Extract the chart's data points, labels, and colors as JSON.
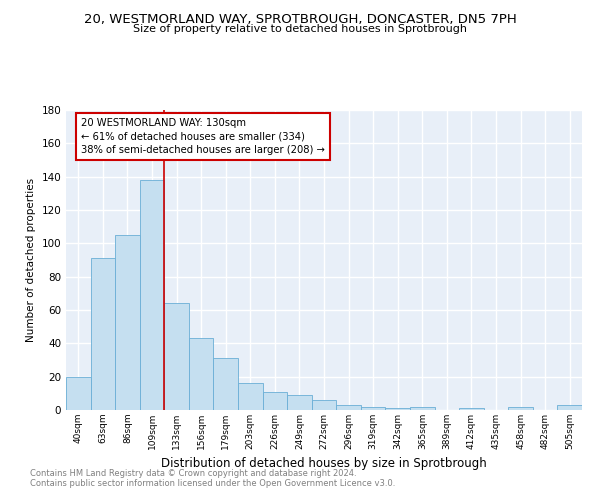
{
  "title": "20, WESTMORLAND WAY, SPROTBROUGH, DONCASTER, DN5 7PH",
  "subtitle": "Size of property relative to detached houses in Sprotbrough",
  "xlabel": "Distribution of detached houses by size in Sprotbrough",
  "ylabel": "Number of detached properties",
  "footnote1": "Contains HM Land Registry data © Crown copyright and database right 2024.",
  "footnote2": "Contains public sector information licensed under the Open Government Licence v3.0.",
  "bar_color": "#c5dff0",
  "bar_edge_color": "#6aaed6",
  "bg_color": "#e8eff8",
  "grid_color": "#ffffff",
  "property_label": "20 WESTMORLAND WAY: 130sqm",
  "annotation_line1": "← 61% of detached houses are smaller (334)",
  "annotation_line2": "38% of semi-detached houses are larger (208) →",
  "annotation_box_color": "#ffffff",
  "annotation_box_edge": "#cc0000",
  "property_line_color": "#cc0000",
  "categories": [
    "40sqm",
    "63sqm",
    "86sqm",
    "109sqm",
    "133sqm",
    "156sqm",
    "179sqm",
    "203sqm",
    "226sqm",
    "249sqm",
    "272sqm",
    "296sqm",
    "319sqm",
    "342sqm",
    "365sqm",
    "389sqm",
    "412sqm",
    "435sqm",
    "458sqm",
    "482sqm",
    "505sqm"
  ],
  "values": [
    20,
    91,
    105,
    138,
    64,
    43,
    31,
    16,
    11,
    9,
    6,
    3,
    2,
    1,
    2,
    0,
    1,
    0,
    2,
    0,
    3
  ],
  "ylim": [
    0,
    180
  ],
  "yticks": [
    0,
    20,
    40,
    60,
    80,
    100,
    120,
    140,
    160,
    180
  ]
}
